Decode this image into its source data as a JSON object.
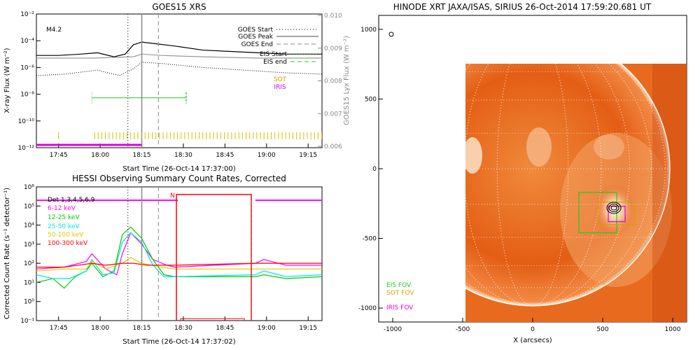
{
  "chart_data": [
    {
      "id": "goes",
      "type": "line",
      "title": "GOES15 XRS",
      "xlabel": "Start Time (26-Oct-14 17:37:00)",
      "ylabel": "X-ray Flux (W m⁻²)",
      "y2label": "GOES15 Lyx Flux (W m⁻²)",
      "flare_class": "M4.2",
      "x_ticks": [
        "17:45",
        "18:00",
        "18:15",
        "18:30",
        "18:45",
        "19:00",
        "19:15"
      ],
      "x_tick_minutes": [
        8,
        23,
        38,
        53,
        68,
        83,
        98
      ],
      "x_range_minutes": [
        0,
        103
      ],
      "y_ticks": [
        "10⁻¹²",
        "10⁻¹⁰",
        "10⁻⁸",
        "10⁻⁶",
        "10⁻⁴",
        "10⁻²"
      ],
      "y_exponents": [
        -12,
        -10,
        -8,
        -6,
        -4,
        -2
      ],
      "y_range_exp": [
        -12,
        -2
      ],
      "y2_ticks": [
        "0.006",
        "0.007",
        "0.008",
        "0.009",
        "0.010"
      ],
      "legend": {
        "goes_start": "GOES Start",
        "goes_peak": "GOES Peak",
        "goes_end": "GOES End",
        "eis_start": "EIS Start",
        "eis_end": "EIS end",
        "sot": "SOT",
        "iris": "IRIS"
      },
      "markers_minutes": {
        "goes_start": 33,
        "goes_peak": 38,
        "goes_end": 44
      },
      "eis_range_minutes": [
        20,
        54
      ],
      "iris_range_minutes": [
        0,
        38
      ],
      "series": [
        {
          "name": "long channel",
          "color": "#000000",
          "x": [
            0,
            8,
            16,
            22,
            28,
            32,
            35,
            38,
            42,
            50,
            60,
            70,
            80,
            90,
            103
          ],
          "y_exp": [
            -5.1,
            -5.1,
            -5.0,
            -4.9,
            -5.2,
            -5.0,
            -4.3,
            -4.1,
            -4.2,
            -4.4,
            -4.7,
            -4.8,
            -4.9,
            -5.0,
            -5.0
          ]
        },
        {
          "name": "lyx",
          "color": "#999999",
          "x": [
            0,
            20,
            35,
            38,
            45,
            60,
            80,
            103
          ],
          "y_exp": [
            -5.3,
            -5.3,
            -5.2,
            -5.0,
            -5.1,
            -5.2,
            -5.3,
            -5.3
          ]
        },
        {
          "name": "short channel",
          "color": "#000000",
          "dotted": true,
          "x": [
            0,
            10,
            22,
            30,
            35,
            38,
            45,
            60,
            75,
            90,
            103
          ],
          "y_exp": [
            -6.6,
            -6.5,
            -6.2,
            -6.6,
            -6.1,
            -5.6,
            -5.7,
            -6.0,
            -6.2,
            -6.4,
            -6.5
          ]
        }
      ]
    },
    {
      "id": "hessi",
      "type": "line",
      "title": "HESSI Observing Summary Count Rates, Corrected",
      "xlabel": "Start Time (26-Oct-14 17:37:02)",
      "ylabel": "Corrected Count Rate (s⁻¹ detector⁻¹)",
      "detectors_label": "Det 1,3,4,5,6,9",
      "night_label": "N",
      "x_ticks": [
        "17:45",
        "18:00",
        "18:15",
        "18:30",
        "18:45",
        "19:00",
        "19:15"
      ],
      "x_tick_minutes": [
        8,
        23,
        38,
        53,
        68,
        83,
        98
      ],
      "x_range_minutes": [
        0,
        103
      ],
      "y_ticks": [
        "10⁻¹",
        "10⁰",
        "10¹",
        "10²",
        "10³",
        "10⁴",
        "10⁵",
        "10⁶"
      ],
      "y_exponents": [
        -1,
        0,
        1,
        2,
        3,
        4,
        5,
        6
      ],
      "y_range_exp": [
        -1,
        6
      ],
      "night_range_minutes": [
        51,
        79
      ],
      "series": [
        {
          "name": "6-12 keV",
          "color": "#ff00ff",
          "x": [
            0,
            10,
            18,
            20,
            25,
            29,
            31,
            34,
            38,
            42,
            47,
            50,
            79,
            82,
            90,
            103
          ],
          "y_exp": [
            1.7,
            1.8,
            2.1,
            2.5,
            1.7,
            1.4,
            2.5,
            3.6,
            3.0,
            2.2,
            1.9,
            1.8,
            2.0,
            2.2,
            1.9,
            1.9
          ]
        },
        {
          "name": "12-25 keV",
          "color": "#00cc00",
          "x": [
            0,
            6,
            10,
            14,
            18,
            20,
            24,
            28,
            31,
            34,
            38,
            42,
            46,
            50,
            79,
            82,
            90,
            103
          ],
          "y_exp": [
            1.0,
            1.2,
            0.7,
            1.3,
            1.6,
            2.0,
            1.3,
            1.6,
            3.5,
            3.9,
            3.3,
            2.2,
            1.4,
            1.3,
            1.3,
            1.4,
            1.2,
            1.3
          ]
        },
        {
          "name": "25-50 keV",
          "color": "#00e5e5",
          "x": [
            0,
            6,
            12,
            18,
            20,
            24,
            28,
            31,
            34,
            38,
            42,
            46,
            50,
            79,
            82,
            90,
            103
          ],
          "y_exp": [
            1.4,
            1.2,
            1.2,
            1.6,
            2.2,
            1.4,
            1.5,
            3.1,
            3.6,
            3.1,
            1.9,
            1.3,
            1.3,
            1.4,
            1.6,
            1.3,
            1.4
          ]
        },
        {
          "name": "50-100 keV",
          "color": "#e6c800",
          "x": [
            0,
            10,
            18,
            20,
            25,
            31,
            34,
            38,
            45,
            50,
            79,
            85,
            95,
            103
          ],
          "y_exp": [
            1.6,
            1.7,
            1.7,
            2.1,
            1.7,
            2.0,
            2.3,
            2.0,
            1.8,
            1.7,
            1.7,
            1.7,
            1.7,
            1.7
          ]
        },
        {
          "name": "100-300 keV",
          "color": "#ff0000",
          "x": [
            0,
            10,
            20,
            25,
            31,
            35,
            40,
            50,
            79,
            85,
            95,
            103
          ],
          "y_exp": [
            1.8,
            1.8,
            2.0,
            1.9,
            2.0,
            2.0,
            1.9,
            1.9,
            2.0,
            2.0,
            2.0,
            2.0
          ]
        }
      ]
    },
    {
      "id": "xrt",
      "type": "heatmap",
      "title": "HINODE XRT JAXA/ISAS, SIRIUS 26-Oct-2014 17:59:20.681 UT",
      "xlabel": "X (arcsecs)",
      "x_ticks": [
        "-1000",
        "-500",
        "0",
        "500",
        "1000"
      ],
      "x_values": [
        -1000,
        -500,
        0,
        500,
        1000
      ],
      "y_ticks": [
        "-1000",
        "-500",
        "0",
        "500",
        "1000"
      ],
      "y_values": [
        -1000,
        -500,
        0,
        500,
        1000
      ],
      "x_range": [
        -1100,
        1100
      ],
      "y_range": [
        -1100,
        1100
      ],
      "image_extent": {
        "x": [
          -490,
          1100
        ],
        "y": [
          -1100,
          740
        ]
      },
      "solar_radius": 980,
      "eis_fov": {
        "x": [
          330,
          600
        ],
        "y": [
          -460,
          -170
        ]
      },
      "sot_fov": {
        "x": [
          470,
          730
        ],
        "y": [
          -400,
          -240
        ]
      },
      "iris_fov": {
        "x": [
          540,
          660
        ],
        "y": [
          -380,
          -270
        ]
      },
      "legend": {
        "eis": "EIS FOV",
        "sot": "SOT FOV",
        "iris": "IRIS FOV"
      },
      "colors": {
        "eis": "#22cc22",
        "sot": "#d4a000",
        "iris": "#dd00dd"
      }
    }
  ]
}
